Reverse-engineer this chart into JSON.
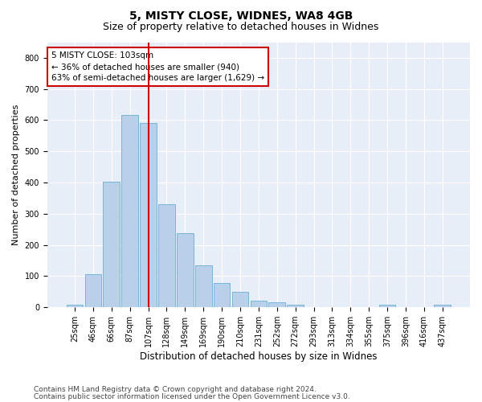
{
  "title1": "5, MISTY CLOSE, WIDNES, WA8 4GB",
  "title2": "Size of property relative to detached houses in Widnes",
  "xlabel": "Distribution of detached houses by size in Widnes",
  "ylabel": "Number of detached properties",
  "categories": [
    "25sqm",
    "46sqm",
    "66sqm",
    "87sqm",
    "107sqm",
    "128sqm",
    "149sqm",
    "169sqm",
    "190sqm",
    "210sqm",
    "231sqm",
    "252sqm",
    "272sqm",
    "293sqm",
    "313sqm",
    "334sqm",
    "355sqm",
    "375sqm",
    "396sqm",
    "416sqm",
    "437sqm"
  ],
  "bar_heights": [
    8,
    107,
    403,
    617,
    591,
    330,
    238,
    134,
    77,
    50,
    22,
    15,
    8,
    0,
    0,
    0,
    0,
    8,
    0,
    0,
    8
  ],
  "bar_color": "#b8d0ea",
  "bar_edge_color": "#6aaed6",
  "vline_index": 4,
  "vline_color": "#cc0000",
  "annotation_text": "5 MISTY CLOSE: 103sqm\n← 36% of detached houses are smaller (940)\n63% of semi-detached houses are larger (1,629) →",
  "annotation_box_color": "white",
  "annotation_box_edge": "#cc0000",
  "ylim": [
    0,
    850
  ],
  "yticks": [
    0,
    100,
    200,
    300,
    400,
    500,
    600,
    700,
    800
  ],
  "background_color": "#e8eef8",
  "grid_color": "white",
  "footer1": "Contains HM Land Registry data © Crown copyright and database right 2024.",
  "footer2": "Contains public sector information licensed under the Open Government Licence v3.0.",
  "title1_fontsize": 10,
  "title2_fontsize": 9,
  "xlabel_fontsize": 8.5,
  "ylabel_fontsize": 8,
  "tick_fontsize": 7,
  "annot_fontsize": 7.5,
  "footer_fontsize": 6.5
}
